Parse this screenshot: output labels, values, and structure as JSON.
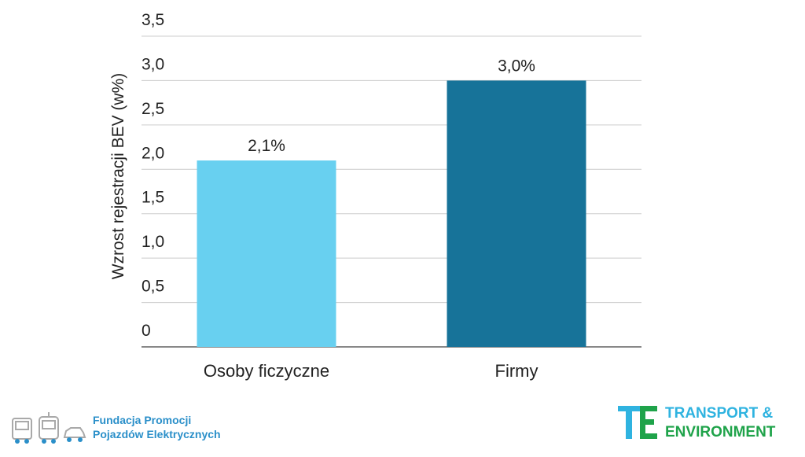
{
  "chart_data": {
    "type": "bar",
    "categories": [
      "Osoby ficzyczne",
      "Firmy"
    ],
    "values": [
      2.1,
      3.0
    ],
    "data_labels": [
      "2,1%",
      "3,0%"
    ],
    "bar_colors": [
      "#68d0f0",
      "#177399"
    ],
    "ylabel": "Wzrost rejestracji BEV (w%)",
    "ylim": [
      0,
      3.5
    ],
    "yticks": [
      "0",
      "0,5",
      "1,0",
      "1,5",
      "2,0",
      "2,5",
      "3,0",
      "3,5"
    ],
    "grid": true,
    "legend": "none"
  },
  "logos": {
    "left": {
      "line1": "Fundacja Promocji",
      "line2": "Pojazdów Elektrycznych",
      "icon": "vehicles-icon"
    },
    "right": {
      "line1": "TRANSPORT &",
      "line2": "ENVIRONMENT",
      "icon": "te-logo-icon"
    }
  },
  "colors": {
    "grid": "#cccccc",
    "axis": "#888888",
    "te_blue": "#2fb3e0",
    "te_green": "#1fa34a",
    "fpe_blue": "#2a8fc9"
  }
}
